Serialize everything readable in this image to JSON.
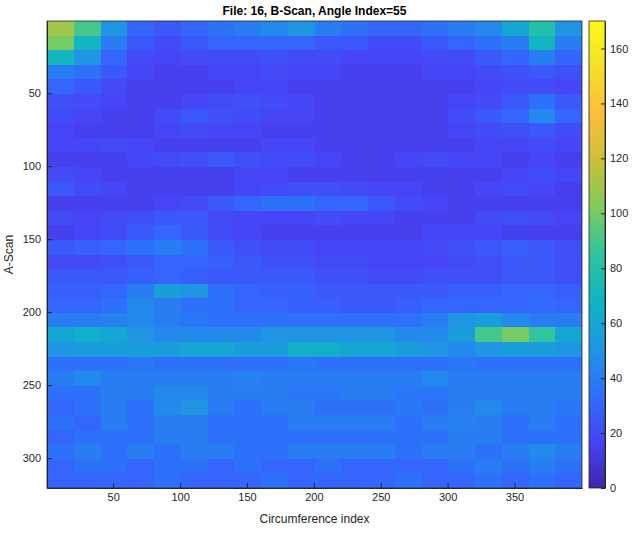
{
  "chart_data": {
    "type": "heatmap",
    "title": "File: 16, B-Scan, Angle Index=55",
    "x_label": "Circumference index",
    "y_label": "A-Scan",
    "xlim": [
      0.5,
      400.5
    ],
    "ylim": [
      0.5,
      320.5
    ],
    "xticks": [
      50,
      100,
      150,
      200,
      250,
      300,
      350
    ],
    "yticks": [
      50,
      100,
      150,
      200,
      250,
      300
    ],
    "x_bins": [
      0.5,
      20.5,
      40.5,
      60.5,
      80.5,
      100.5,
      120.5,
      140.5,
      160.5,
      180.5,
      200.5,
      220.5,
      240.5,
      260.5,
      280.5,
      300.5,
      320.5,
      340.5,
      360.5,
      380.5,
      400.5
    ],
    "y_bins": [
      0.5,
      10.5,
      20.5,
      30.5,
      40.5,
      50.5,
      60.5,
      70.5,
      80.5,
      90.5,
      100.5,
      110.5,
      120.5,
      130.5,
      140.5,
      150.5,
      160.5,
      170.5,
      180.5,
      190.5,
      200.5,
      210.5,
      220.5,
      230.5,
      240.5,
      250.5,
      260.5,
      270.5,
      280.5,
      290.5,
      300.5,
      310.5,
      320.5
    ],
    "z": [
      [
        110,
        90,
        50,
        30,
        25,
        30,
        35,
        40,
        45,
        50,
        40,
        35,
        30,
        30,
        35,
        40,
        45,
        60,
        80,
        50
      ],
      [
        100,
        70,
        40,
        25,
        20,
        25,
        30,
        30,
        30,
        30,
        25,
        25,
        20,
        20,
        25,
        30,
        35,
        40,
        70,
        40
      ],
      [
        70,
        50,
        30,
        20,
        18,
        20,
        20,
        20,
        22,
        20,
        20,
        18,
        18,
        18,
        20,
        20,
        25,
        30,
        40,
        30
      ],
      [
        40,
        35,
        25,
        18,
        15,
        15,
        18,
        18,
        20,
        18,
        18,
        15,
        15,
        15,
        18,
        18,
        20,
        22,
        25,
        22
      ],
      [
        30,
        25,
        20,
        15,
        15,
        15,
        15,
        18,
        18,
        15,
        15,
        15,
        15,
        15,
        15,
        15,
        18,
        20,
        20,
        18
      ],
      [
        22,
        20,
        18,
        15,
        15,
        18,
        20,
        22,
        20,
        18,
        15,
        15,
        15,
        15,
        15,
        18,
        20,
        25,
        35,
        25
      ],
      [
        20,
        18,
        15,
        15,
        20,
        25,
        22,
        20,
        18,
        18,
        15,
        15,
        15,
        15,
        15,
        20,
        25,
        30,
        45,
        30
      ],
      [
        18,
        15,
        15,
        15,
        18,
        20,
        18,
        18,
        15,
        15,
        15,
        15,
        15,
        15,
        15,
        18,
        20,
        22,
        25,
        20
      ],
      [
        18,
        18,
        20,
        18,
        15,
        15,
        15,
        15,
        18,
        18,
        15,
        15,
        15,
        15,
        15,
        15,
        18,
        18,
        20,
        18
      ],
      [
        15,
        15,
        15,
        18,
        20,
        22,
        25,
        22,
        20,
        20,
        18,
        15,
        15,
        18,
        20,
        18,
        18,
        15,
        18,
        15
      ],
      [
        20,
        18,
        15,
        15,
        15,
        15,
        15,
        18,
        18,
        15,
        15,
        15,
        15,
        15,
        15,
        15,
        15,
        18,
        20,
        18
      ],
      [
        25,
        20,
        18,
        15,
        15,
        15,
        15,
        18,
        20,
        22,
        22,
        20,
        18,
        18,
        15,
        15,
        18,
        20,
        18,
        15
      ],
      [
        15,
        15,
        15,
        15,
        18,
        20,
        25,
        30,
        35,
        35,
        30,
        30,
        25,
        20,
        18,
        15,
        15,
        15,
        15,
        15
      ],
      [
        20,
        18,
        20,
        22,
        25,
        25,
        20,
        18,
        18,
        18,
        20,
        18,
        18,
        15,
        15,
        15,
        20,
        22,
        20,
        18
      ],
      [
        15,
        18,
        20,
        25,
        30,
        25,
        20,
        18,
        15,
        15,
        15,
        15,
        15,
        15,
        18,
        18,
        18,
        15,
        15,
        15
      ],
      [
        25,
        28,
        30,
        35,
        40,
        35,
        25,
        22,
        20,
        20,
        18,
        18,
        18,
        18,
        20,
        22,
        25,
        28,
        25,
        22
      ],
      [
        20,
        20,
        22,
        25,
        30,
        30,
        28,
        25,
        22,
        22,
        20,
        20,
        18,
        18,
        18,
        20,
        22,
        25,
        25,
        22
      ],
      [
        25,
        25,
        25,
        28,
        30,
        28,
        25,
        25,
        25,
        25,
        22,
        22,
        20,
        20,
        22,
        22,
        22,
        25,
        25,
        22
      ],
      [
        28,
        28,
        30,
        40,
        55,
        50,
        35,
        30,
        28,
        28,
        25,
        25,
        25,
        25,
        25,
        28,
        28,
        30,
        30,
        28
      ],
      [
        30,
        30,
        35,
        45,
        40,
        35,
        35,
        30,
        30,
        28,
        28,
        25,
        25,
        28,
        30,
        30,
        30,
        30,
        32,
        30
      ],
      [
        40,
        40,
        42,
        45,
        40,
        38,
        35,
        35,
        35,
        35,
        35,
        35,
        35,
        35,
        40,
        50,
        55,
        45,
        40,
        40
      ],
      [
        60,
        65,
        60,
        50,
        45,
        45,
        45,
        45,
        50,
        50,
        50,
        50,
        50,
        45,
        45,
        55,
        90,
        100,
        85,
        60
      ],
      [
        50,
        55,
        55,
        55,
        55,
        60,
        60,
        55,
        55,
        65,
        65,
        60,
        60,
        55,
        50,
        45,
        50,
        55,
        55,
        50
      ],
      [
        35,
        35,
        35,
        38,
        35,
        35,
        35,
        35,
        35,
        38,
        35,
        35,
        35,
        35,
        35,
        38,
        35,
        35,
        35,
        35
      ],
      [
        40,
        45,
        40,
        40,
        40,
        40,
        40,
        42,
        40,
        40,
        40,
        40,
        40,
        40,
        45,
        40,
        40,
        40,
        40,
        40
      ],
      [
        35,
        35,
        40,
        40,
        45,
        45,
        40,
        40,
        40,
        38,
        38,
        40,
        40,
        38,
        38,
        40,
        40,
        40,
        40,
        40
      ],
      [
        30,
        35,
        40,
        35,
        45,
        50,
        40,
        35,
        40,
        40,
        35,
        35,
        35,
        38,
        35,
        40,
        45,
        40,
        40,
        38
      ],
      [
        35,
        30,
        40,
        35,
        40,
        40,
        35,
        35,
        35,
        40,
        40,
        40,
        40,
        35,
        40,
        42,
        40,
        35,
        40,
        35
      ],
      [
        30,
        35,
        35,
        35,
        40,
        40,
        35,
        35,
        35,
        35,
        35,
        35,
        35,
        35,
        35,
        40,
        40,
        35,
        35,
        35
      ],
      [
        35,
        40,
        35,
        40,
        35,
        40,
        40,
        35,
        35,
        40,
        40,
        40,
        40,
        35,
        40,
        40,
        35,
        40,
        45,
        40
      ],
      [
        30,
        35,
        35,
        30,
        35,
        35,
        30,
        35,
        30,
        30,
        35,
        30,
        30,
        30,
        30,
        35,
        40,
        35,
        40,
        35
      ],
      [
        30,
        30,
        30,
        30,
        35,
        30,
        30,
        30,
        35,
        30,
        30,
        30,
        30,
        35,
        30,
        30,
        35,
        30,
        35,
        30
      ]
    ],
    "colorbar": {
      "range": [
        0,
        170
      ],
      "ticks": [
        0,
        20,
        40,
        60,
        80,
        100,
        120,
        140,
        160
      ]
    }
  }
}
